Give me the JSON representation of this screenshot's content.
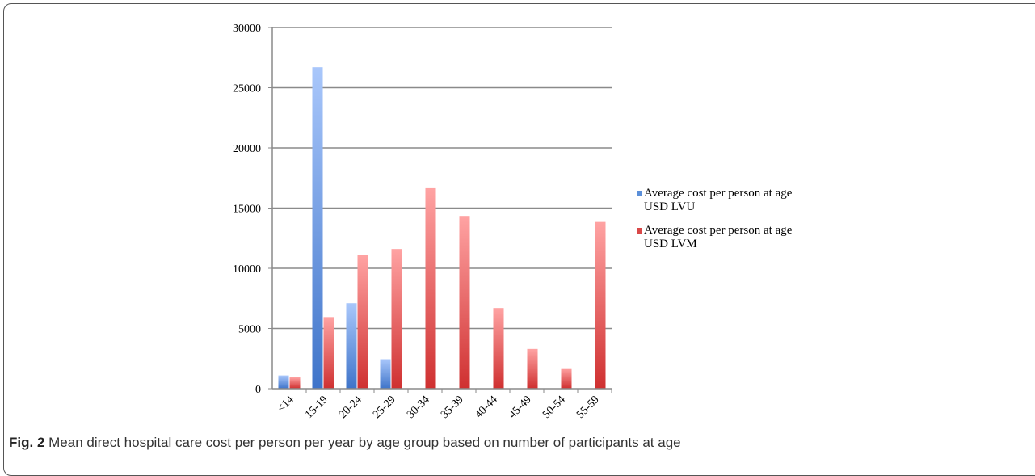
{
  "chart_data": {
    "type": "bar",
    "categories": [
      "<14",
      "15-19",
      "20-24",
      "25-29",
      "30-34",
      "35-39",
      "40-44",
      "45-49",
      "50-54",
      "55-59"
    ],
    "series": [
      {
        "name": "Average cost per person at age USD LVU",
        "name_lines": [
          "Average cost per person at age",
          "USD LVU"
        ],
        "values": [
          1100,
          26700,
          7100,
          2450,
          0,
          0,
          0,
          0,
          0,
          0
        ],
        "color": "#5b8fd9"
      },
      {
        "name": "Average cost per person at age USD LVM",
        "name_lines": [
          "Average cost per person at age",
          "USD LVM"
        ],
        "values": [
          950,
          5950,
          11100,
          11600,
          16650,
          14350,
          6700,
          3300,
          1700,
          13850
        ],
        "color": "#d94848"
      }
    ],
    "yticks": [
      0,
      5000,
      10000,
      15000,
      20000,
      25000,
      30000
    ],
    "ylim": [
      0,
      30000
    ],
    "grid": true,
    "legend": "right"
  },
  "caption": {
    "label": "Fig. 2",
    "text": "Mean direct hospital care cost per person per year by age group based on number of participants at age"
  }
}
